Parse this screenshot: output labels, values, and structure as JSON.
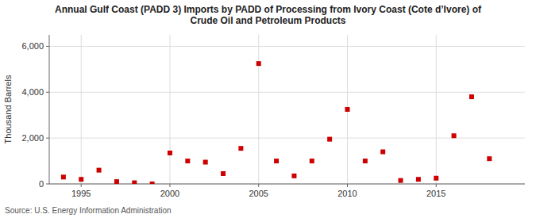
{
  "chart_data": {
    "type": "scatter",
    "title": "Annual Gulf Coast (PADD 3) Imports by PADD of Processing from Ivory Coast (Cote d’Ivore) of\nCrude Oil and Petroleum Products",
    "y_label": "Thousand Barrels",
    "source": "Source: U.S. Energy Information Administration",
    "x": [
      1994,
      1995,
      1996,
      1997,
      1998,
      1999,
      2000,
      2001,
      2002,
      2003,
      2004,
      2005,
      2006,
      2007,
      2008,
      2009,
      2010,
      2011,
      2012,
      2013,
      2014,
      2015,
      2016,
      2017,
      2018
    ],
    "values": [
      300,
      200,
      600,
      100,
      50,
      0,
      1350,
      1000,
      950,
      450,
      1550,
      5250,
      1000,
      350,
      1000,
      1950,
      3250,
      1000,
      1400,
      150,
      200,
      250,
      2100,
      3800,
      1100
    ],
    "color": "#cc0000",
    "marker": "square",
    "xlim": [
      1993.2,
      2020.0
    ],
    "xticks": [
      1995,
      2000,
      2005,
      2010,
      2015
    ],
    "ylim": [
      0,
      6500
    ],
    "yticks": [
      0,
      {
        "value": 2000,
        "label": "2,000"
      },
      {
        "value": 4000,
        "label": "4,000"
      },
      {
        "value": 6000,
        "label": "6,000"
      }
    ],
    "grid": true
  }
}
